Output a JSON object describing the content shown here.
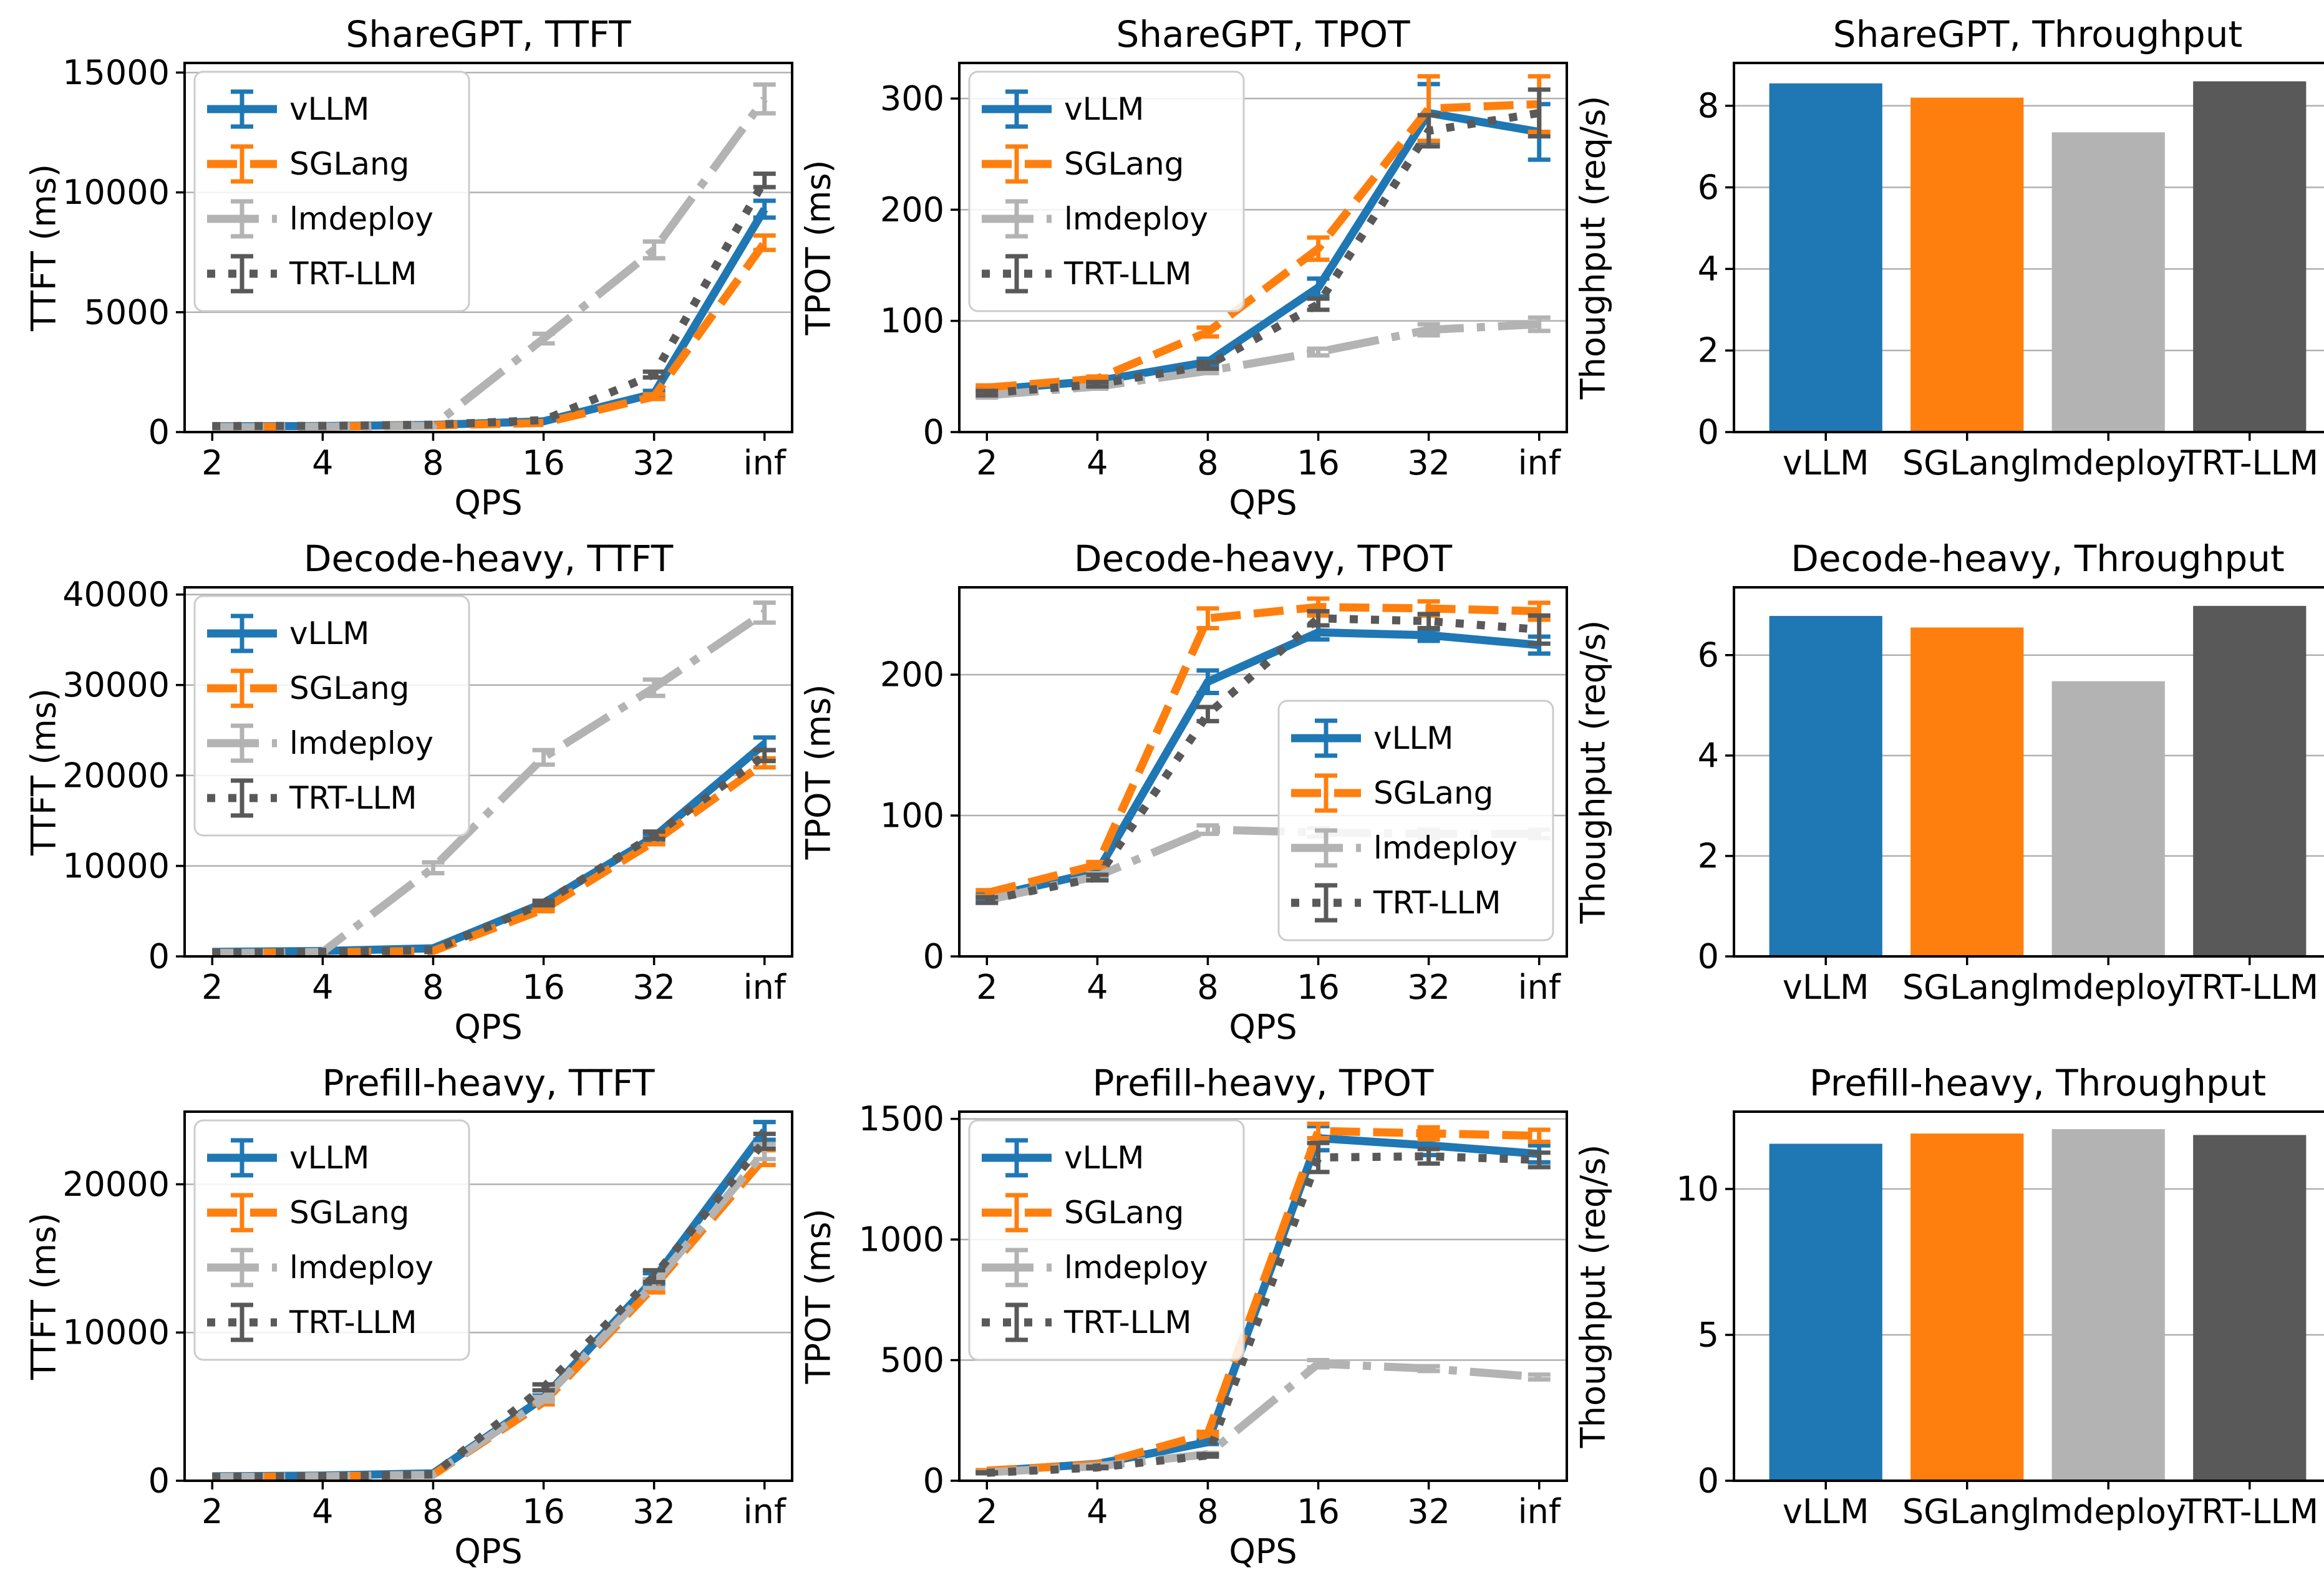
{
  "figure_title": "LLM serving benchmark figure",
  "colors": {
    "vLLM": "#1f77b4",
    "SGLang": "#ff7f0e",
    "lmdeploy": "#b3b3b3",
    "TRT-LLM": "#595959"
  },
  "linestyles": {
    "vLLM": "solid",
    "SGLang": "dashed",
    "lmdeploy": "dashdot",
    "TRT-LLM": "dotted"
  },
  "grid_color": "#b0b0b0",
  "legend_labels": [
    "vLLM",
    "SGLang",
    "lmdeploy",
    "TRT-LLM"
  ],
  "chart_data": [
    {
      "type": "line",
      "title": "ShareGPT, TTFT",
      "xlabel": "QPS",
      "ylabel": "TTFT (ms)",
      "x": [
        "2",
        "4",
        "8",
        "16",
        "32",
        "inf"
      ],
      "ylim": [
        0,
        15400
      ],
      "yticks": [
        0,
        5000,
        10000,
        15000
      ],
      "legend": "upper-left",
      "grid": true,
      "series": [
        {
          "name": "vLLM",
          "values": [
            240,
            250,
            300,
            450,
            1600,
            9300
          ],
          "yerr": [
            0,
            0,
            0,
            0,
            120,
            350
          ]
        },
        {
          "name": "SGLang",
          "values": [
            210,
            230,
            280,
            380,
            1480,
            7900
          ],
          "yerr": [
            0,
            0,
            0,
            0,
            100,
            300
          ]
        },
        {
          "name": "lmdeploy",
          "values": [
            200,
            220,
            260,
            3900,
            7600,
            13900
          ],
          "yerr": [
            0,
            0,
            0,
            200,
            350,
            600
          ]
        },
        {
          "name": "TRT-LLM",
          "values": [
            250,
            260,
            310,
            500,
            2400,
            10500
          ],
          "yerr": [
            0,
            0,
            0,
            0,
            120,
            280
          ]
        }
      ]
    },
    {
      "type": "line",
      "title": "ShareGPT, TPOT",
      "xlabel": "QPS",
      "ylabel": "TPOT (ms)",
      "x": [
        "2",
        "4",
        "8",
        "16",
        "32",
        "inf"
      ],
      "ylim": [
        0,
        332
      ],
      "yticks": [
        0,
        100,
        200,
        300
      ],
      "legend": "upper-left",
      "grid": true,
      "series": [
        {
          "name": "vLLM",
          "values": [
            38,
            46,
            63,
            130,
            287,
            270
          ],
          "yerr": [
            2,
            2,
            3,
            8,
            26,
            25
          ]
        },
        {
          "name": "SGLang",
          "values": [
            40,
            48,
            90,
            165,
            291,
            295
          ],
          "yerr": [
            2,
            2,
            4,
            10,
            29,
            25
          ]
        },
        {
          "name": "lmdeploy",
          "values": [
            33,
            41,
            55,
            72,
            92,
            97
          ],
          "yerr": [
            2,
            2,
            2,
            3,
            5,
            6
          ]
        },
        {
          "name": "TRT-LLM",
          "values": [
            35,
            43,
            60,
            115,
            271,
            287
          ],
          "yerr": [
            2,
            2,
            3,
            5,
            14,
            21
          ]
        }
      ]
    },
    {
      "type": "bar",
      "title": "ShareGPT, Throughput",
      "xlabel": "",
      "ylabel": "Thoughput (req/s)",
      "categories": [
        "vLLM",
        "SGLang",
        "lmdeploy",
        "TRT-LLM"
      ],
      "values": [
        8.55,
        8.2,
        7.35,
        8.6
      ],
      "ylim": [
        0,
        9.05
      ],
      "yticks": [
        0,
        2,
        4,
        6,
        8
      ],
      "legend": null,
      "grid": true
    },
    {
      "type": "line",
      "title": "Decode-heavy, TTFT",
      "xlabel": "QPS",
      "ylabel": "TTFT (ms)",
      "x": [
        "2",
        "4",
        "8",
        "16",
        "32",
        "inf"
      ],
      "ylim": [
        0,
        40800
      ],
      "yticks": [
        0,
        10000,
        20000,
        30000,
        40000
      ],
      "legend": "upper-left",
      "grid": true,
      "series": [
        {
          "name": "vLLM",
          "values": [
            500,
            600,
            900,
            5900,
            13200,
            23500
          ],
          "yerr": [
            0,
            0,
            0,
            200,
            300,
            700
          ]
        },
        {
          "name": "SGLang",
          "values": [
            400,
            450,
            600,
            5200,
            12700,
            21400
          ],
          "yerr": [
            0,
            0,
            0,
            200,
            300,
            500
          ]
        },
        {
          "name": "lmdeploy",
          "values": [
            350,
            500,
            9800,
            22000,
            29700,
            38000
          ],
          "yerr": [
            0,
            0,
            600,
            800,
            900,
            1100
          ]
        },
        {
          "name": "TRT-LLM",
          "values": [
            400,
            500,
            700,
            5900,
            13400,
            22200
          ],
          "yerr": [
            0,
            0,
            0,
            250,
            400,
            600
          ]
        }
      ]
    },
    {
      "type": "line",
      "title": "Decode-heavy, TPOT",
      "xlabel": "QPS",
      "ylabel": "TPOT (ms)",
      "x": [
        "2",
        "4",
        "8",
        "16",
        "32",
        "inf"
      ],
      "ylim": [
        0,
        262
      ],
      "yticks": [
        0,
        100,
        200
      ],
      "legend": "right-center",
      "grid": true,
      "series": [
        {
          "name": "vLLM",
          "values": [
            42,
            60,
            195,
            230,
            228,
            221
          ],
          "yerr": [
            2,
            2,
            8,
            5,
            4,
            6
          ]
        },
        {
          "name": "SGLang",
          "values": [
            45,
            65,
            240,
            248,
            247,
            245
          ],
          "yerr": [
            2,
            2,
            7,
            6,
            5,
            6
          ]
        },
        {
          "name": "lmdeploy",
          "values": [
            40,
            57,
            90,
            88,
            87,
            87
          ],
          "yerr": [
            2,
            2,
            3,
            3,
            3,
            3
          ]
        },
        {
          "name": "TRT-LLM",
          "values": [
            40,
            56,
            172,
            240,
            238,
            232
          ],
          "yerr": [
            2,
            2,
            5,
            5,
            5,
            10
          ]
        }
      ]
    },
    {
      "type": "bar",
      "title": "Decode-heavy, Throughput",
      "xlabel": "",
      "ylabel": "Thoughput (req/s)",
      "categories": [
        "vLLM",
        "SGLang",
        "lmdeploy",
        "TRT-LLM"
      ],
      "values": [
        6.78,
        6.55,
        5.48,
        6.98
      ],
      "ylim": [
        0,
        7.35
      ],
      "yticks": [
        0,
        2,
        4,
        6
      ],
      "legend": null,
      "grid": true
    },
    {
      "type": "line",
      "title": "Prefill-heavy, TTFT",
      "xlabel": "QPS",
      "ylabel": "TTFT (ms)",
      "x": [
        "2",
        "4",
        "8",
        "16",
        "32",
        "inf"
      ],
      "ylim": [
        0,
        24900
      ],
      "yticks": [
        0,
        10000,
        20000
      ],
      "legend": "upper-left",
      "grid": true,
      "series": [
        {
          "name": "vLLM",
          "values": [
            300,
            350,
            500,
            5600,
            13600,
            23600
          ],
          "yerr": [
            0,
            0,
            0,
            150,
            400,
            600
          ]
        },
        {
          "name": "SGLang",
          "values": [
            250,
            300,
            400,
            5300,
            13100,
            21800
          ],
          "yerr": [
            0,
            0,
            0,
            150,
            400,
            500
          ]
        },
        {
          "name": "lmdeploy",
          "values": [
            250,
            300,
            400,
            5500,
            13300,
            22200
          ],
          "yerr": [
            0,
            0,
            0,
            150,
            300,
            500
          ]
        },
        {
          "name": "TRT-LLM",
          "values": [
            260,
            310,
            420,
            6300,
            13800,
            22900
          ],
          "yerr": [
            0,
            0,
            0,
            200,
            400,
            500
          ]
        }
      ]
    },
    {
      "type": "line",
      "title": "Prefill-heavy, TPOT",
      "xlabel": "QPS",
      "ylabel": "TPOT (ms)",
      "x": [
        "2",
        "4",
        "8",
        "16",
        "32",
        "inf"
      ],
      "ylim": [
        0,
        1530
      ],
      "yticks": [
        0,
        500,
        1000,
        1500
      ],
      "legend": "upper-left",
      "grid": true,
      "series": [
        {
          "name": "vLLM",
          "values": [
            40,
            70,
            160,
            1420,
            1390,
            1355
          ],
          "yerr": [
            2,
            3,
            8,
            50,
            40,
            35
          ]
        },
        {
          "name": "SGLang",
          "values": [
            42,
            68,
            195,
            1450,
            1440,
            1430
          ],
          "yerr": [
            2,
            3,
            8,
            30,
            25,
            25
          ]
        },
        {
          "name": "lmdeploy",
          "values": [
            35,
            60,
            110,
            485,
            465,
            430
          ],
          "yerr": [
            2,
            3,
            5,
            15,
            10,
            10
          ]
        },
        {
          "name": "TRT-LLM",
          "values": [
            33,
            55,
            105,
            1340,
            1345,
            1330
          ],
          "yerr": [
            2,
            3,
            5,
            60,
            30,
            30
          ]
        }
      ]
    },
    {
      "type": "bar",
      "title": "Prefill-heavy, Throughput",
      "xlabel": "",
      "ylabel": "Thoughput (req/s)",
      "categories": [
        "vLLM",
        "SGLang",
        "lmdeploy",
        "TRT-LLM"
      ],
      "values": [
        11.55,
        11.9,
        12.05,
        11.85
      ],
      "ylim": [
        0,
        12.65
      ],
      "yticks": [
        0,
        5,
        10
      ],
      "legend": null,
      "grid": true
    }
  ]
}
